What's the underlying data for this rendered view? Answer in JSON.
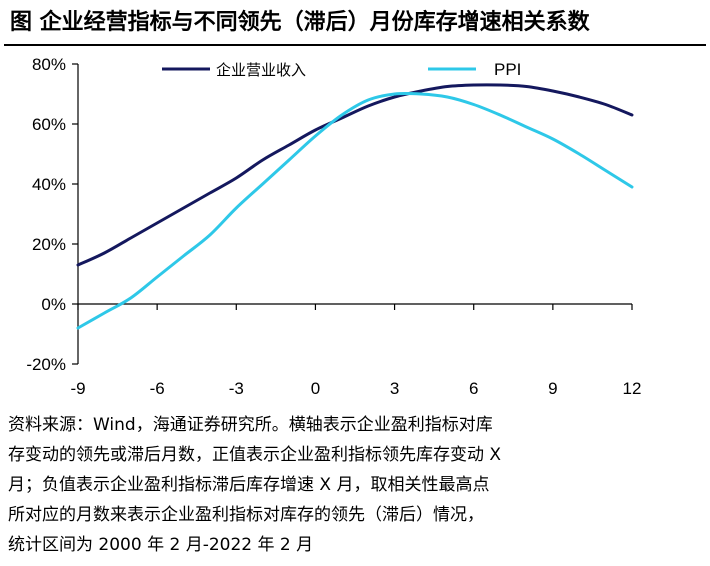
{
  "figure": {
    "title": "图    企业经营指标与不同领先（滞后）月份库存增速相关系数"
  },
  "colors": {
    "revenue": "#14185e",
    "ppi": "#2ec8e8",
    "axis": "#000000"
  },
  "chart_data": {
    "type": "line",
    "title": "",
    "xlabel": "",
    "ylabel": "",
    "xlim": [
      -9,
      12
    ],
    "ylim": [
      -20,
      80
    ],
    "x_ticks": [
      -9,
      -6,
      -3,
      0,
      3,
      6,
      9,
      12
    ],
    "x_tick_labels": [
      "-9",
      "-6",
      "-3",
      "0",
      "3",
      "6",
      "9",
      "12"
    ],
    "y_ticks": [
      -20,
      0,
      20,
      40,
      60,
      80
    ],
    "y_tick_labels": [
      "-20%",
      "0%",
      "20%",
      "40%",
      "60%",
      "80%"
    ],
    "grid": false,
    "legend": "top",
    "series": [
      {
        "name": "企业营业收入",
        "color": "#14185e",
        "x": [
          -9,
          -8,
          -7,
          -6,
          -5,
          -4,
          -3,
          -2,
          -1,
          0,
          1,
          2,
          3,
          4,
          5,
          6,
          7,
          8,
          9,
          10,
          11,
          12
        ],
        "values": [
          13,
          17,
          22,
          27,
          32,
          37,
          42,
          48,
          53,
          58,
          62,
          66,
          69,
          71,
          72.5,
          73,
          73,
          72.5,
          71,
          69,
          66.5,
          63
        ]
      },
      {
        "name": "PPI",
        "color": "#2ec8e8",
        "x": [
          -9,
          -8,
          -7,
          -6,
          -5,
          -4,
          -3,
          -2,
          -1,
          0,
          1,
          2,
          3,
          4,
          5,
          6,
          7,
          8,
          9,
          10,
          11,
          12
        ],
        "values": [
          -8,
          -3,
          2,
          9,
          16,
          23,
          32,
          40,
          48,
          56,
          63,
          68,
          70,
          70,
          69,
          66.5,
          63,
          59,
          55,
          50,
          44.5,
          39
        ]
      }
    ]
  },
  "source_note": {
    "lines": [
      "资料来源：Wind，海通证券研究所。横轴表示企业盈利指标对库",
      "存变动的领先或滞后月数，正值表示企业盈利指标领先库存变动 X",
      "月；负值表示企业盈利指标滞后库存增速 X 月，取相关性最高点",
      "所对应的月数来表示企业盈利指标对库存的领先（滞后）情况，",
      "统计区间为 2000 年 2 月-2022 年 2 月"
    ]
  }
}
